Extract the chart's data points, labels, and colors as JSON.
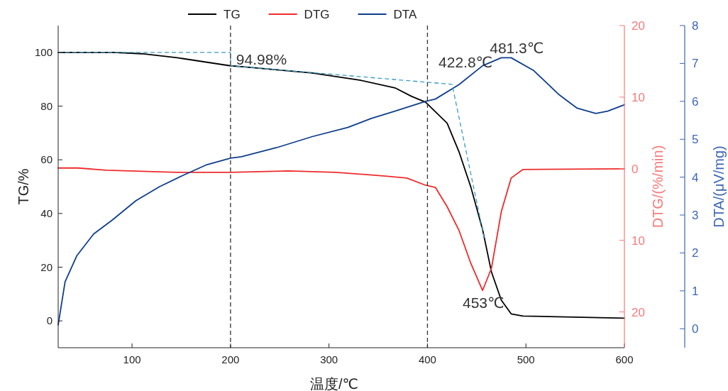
{
  "chart_data": {
    "type": "line",
    "xlabel": "温度/℃",
    "ylabel": "TG/%",
    "y2label": "DTG/(%/min)",
    "y3label": "DTA/(μV/mg)",
    "xlim": [
      25,
      600
    ],
    "xticks": [
      100,
      200,
      300,
      400,
      500,
      600
    ],
    "ylim": [
      -10,
      110
    ],
    "yticks": [
      0,
      20,
      40,
      60,
      80,
      100
    ],
    "y2lim": [
      -25,
      20
    ],
    "y2ticks": [
      20,
      10,
      0,
      {
        "value": -10,
        "label": "10"
      },
      {
        "value": -20,
        "label": "20"
      }
    ],
    "y3lim": [
      -0.5,
      8
    ],
    "y3ticks": [
      0,
      1,
      2,
      3,
      4,
      5,
      6,
      7,
      8
    ],
    "legend": "top",
    "grid": false,
    "series": [
      {
        "name": "TG",
        "color": "#000000",
        "x": [
          25,
          81,
          110,
          146,
          200,
          211,
          283,
          331,
          367,
          384,
          398,
          420,
          432,
          444,
          456,
          465,
          475,
          485,
          497,
          600
        ],
        "values": [
          100,
          100,
          99.5,
          98,
          95,
          94.7,
          92.3,
          89.7,
          86.8,
          83.6,
          81.5,
          73.6,
          63,
          49.9,
          34,
          18.2,
          7.7,
          2.6,
          1.8,
          1.0
        ]
      },
      {
        "name": "DTG",
        "color": "#ee2c2c",
        "axis": "y2",
        "x": [
          25,
          45,
          74,
          146,
          200,
          259,
          307,
          355,
          379,
          398,
          408,
          420,
          432,
          444,
          456,
          465,
          475,
          485,
          497,
          600
        ],
        "values": [
          0.1,
          0.1,
          -0.2,
          -0.5,
          -0.5,
          -0.3,
          -0.5,
          -1.0,
          -1.3,
          -2.3,
          -2.6,
          -5.3,
          -8.6,
          -13.2,
          -17.0,
          -13.9,
          -6.0,
          -1.3,
          -0.1,
          0.0
        ]
      },
      {
        "name": "DTA",
        "color": "#0f3e8c",
        "axis": "y3",
        "x": [
          25,
          32,
          44,
          61,
          80,
          104,
          128,
          152,
          176,
          200,
          211,
          247,
          283,
          319,
          343,
          367,
          398,
          408,
          432,
          456,
          475,
          485,
          508,
          533,
          552,
          571,
          583,
          600
        ],
        "values": [
          0.1,
          1.24,
          1.93,
          2.5,
          2.87,
          3.38,
          3.75,
          4.05,
          4.33,
          4.5,
          4.54,
          4.78,
          5.07,
          5.31,
          5.55,
          5.74,
          6.0,
          6.06,
          6.44,
          6.94,
          7.15,
          7.15,
          6.81,
          6.19,
          5.82,
          5.68,
          5.74,
          5.91
        ]
      },
      {
        "color": "#3a9bc4",
        "line_style": "dashed",
        "x": [
          25,
          200,
          200,
          425,
          458
        ],
        "values": [
          100,
          100,
          95,
          88.1,
          30.3
        ]
      }
    ],
    "ref_lines": [
      {
        "axis": "x",
        "value": 200,
        "color": "#333333",
        "line_style": "dashed"
      },
      {
        "axis": "x",
        "value": 400,
        "color": "#333333",
        "line_style": "dashed"
      }
    ],
    "annotations": [
      {
        "text": "94.98%",
        "x": 200,
        "y": 94.98
      },
      {
        "text": "422.8℃",
        "x": 422.8,
        "y": 88.1
      },
      {
        "text": "481.3℃",
        "x": 481.3,
        "y": 97.6
      },
      {
        "text": "453℃",
        "x": 453,
        "y": 11.6
      }
    ]
  }
}
